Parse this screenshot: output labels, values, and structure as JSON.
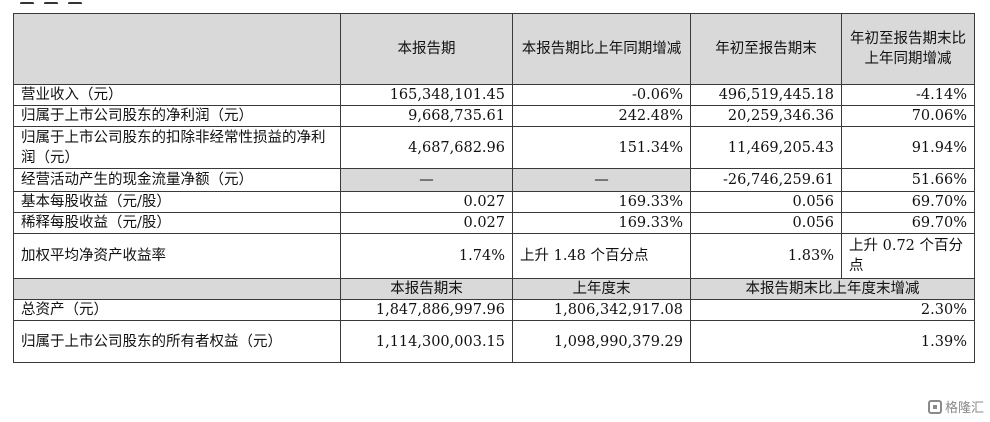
{
  "table": {
    "header": {
      "col1": "本报告期",
      "col2": "本报告期比上年同期增减",
      "col3": "年初至报告期末",
      "col4": "年初至报告期末比上年同期增减"
    },
    "rows": [
      {
        "label": "营业收入（元）",
        "c1": "165,348,101.45",
        "c2": "-0.06%",
        "c3": "496,519,445.18",
        "c4": "-4.14%"
      },
      {
        "label": "归属于上市公司股东的净利润（元）",
        "c1": "9,668,735.61",
        "c2": "242.48%",
        "c3": "20,259,346.36",
        "c4": "70.06%"
      },
      {
        "label": "归属于上市公司股东的扣除非经常性损益的净利润（元）",
        "c1": "4,687,682.96",
        "c2": "151.34%",
        "c3": "11,469,205.43",
        "c4": "91.94%"
      },
      {
        "label": "经营活动产生的现金流量净额（元）",
        "c1": "—",
        "c2": "—",
        "c3": "-26,746,259.61",
        "c4": "51.66%"
      },
      {
        "label": "基本每股收益（元/股）",
        "c1": "0.027",
        "c2": "169.33%",
        "c3": "0.056",
        "c4": "69.70%"
      },
      {
        "label": "稀释每股收益（元/股）",
        "c1": "0.027",
        "c2": "169.33%",
        "c3": "0.056",
        "c4": "69.70%"
      },
      {
        "label": "加权平均净资产收益率",
        "c1": "1.74%",
        "c2": "上升 1.48 个百分点",
        "c3": "1.83%",
        "c4": "上升 0.72 个百分点"
      }
    ],
    "subheader": {
      "col1": "本报告期末",
      "col2": "上年度末",
      "col34": "本报告期末比上年度末增减"
    },
    "rows2": [
      {
        "label": "总资产（元）",
        "c1": "1,847,886,997.96",
        "c2": "1,806,342,917.08",
        "c34": "2.30%"
      },
      {
        "label": "归属于上市公司股东的所有者权益（元）",
        "c1": "1,114,300,003.15",
        "c2": "1,098,990,379.29",
        "c34": "1.39%"
      }
    ]
  },
  "watermark": {
    "text": "格隆汇"
  }
}
